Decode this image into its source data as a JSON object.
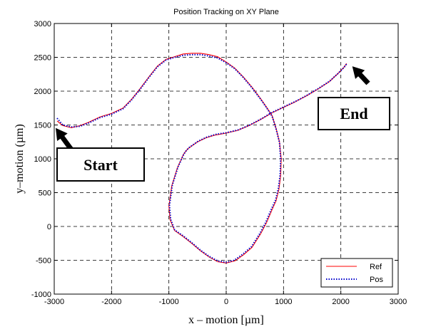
{
  "chart_data": {
    "type": "line",
    "title": "Position Tracking on XY Plane",
    "xlabel": "x – motion [µm]",
    "ylabel": "y–motion  (µm)",
    "xlim": [
      -3000,
      3000
    ],
    "ylim": [
      -1000,
      3000
    ],
    "xticks": [
      -3000,
      -2000,
      -1000,
      0,
      1000,
      2000,
      3000
    ],
    "yticks": [
      -1000,
      -500,
      0,
      500,
      1000,
      1500,
      2000,
      2500,
      3000
    ],
    "xtick_labels": [
      "-3000",
      "-2000",
      "-1000",
      "0",
      "1000",
      "2000",
      "3000"
    ],
    "ytick_labels": [
      "-1000",
      "-500",
      "0",
      "500",
      "1000",
      "1500",
      "2000",
      "2500",
      "3000"
    ],
    "grid": true,
    "legend_position": "bottom-right",
    "series": [
      {
        "name": "Ref",
        "color": "#ff0000",
        "style": "solid",
        "x": [
          -2950,
          -2850,
          -2700,
          -2550,
          -2400,
          -2200,
          -2000,
          -1800,
          -1650,
          -1500,
          -1350,
          -1200,
          -1050,
          -900,
          -750,
          -600,
          -450,
          -300,
          -150,
          0,
          150,
          300,
          450,
          600,
          700,
          800,
          870,
          930,
          960,
          950,
          920,
          870,
          800,
          750,
          700,
          600,
          450,
          300,
          150,
          0,
          -150,
          -300,
          -450,
          -600,
          -750,
          -900,
          -980,
          -1000,
          -950,
          -850,
          -750,
          -700,
          -650,
          -500,
          -350,
          -200,
          0,
          200,
          400,
          600,
          800,
          1000,
          1200,
          1400,
          1600,
          1800,
          1950,
          2050,
          2100
        ],
        "y": [
          1560,
          1490,
          1460,
          1490,
          1540,
          1620,
          1670,
          1750,
          1880,
          2040,
          2210,
          2370,
          2470,
          2510,
          2550,
          2560,
          2560,
          2540,
          2510,
          2430,
          2340,
          2210,
          2060,
          1890,
          1770,
          1640,
          1450,
          1250,
          1000,
          750,
          550,
          380,
          250,
          150,
          50,
          -110,
          -310,
          -420,
          -510,
          -540,
          -520,
          -450,
          -360,
          -250,
          -150,
          -60,
          100,
          300,
          600,
          870,
          1060,
          1120,
          1160,
          1250,
          1310,
          1350,
          1380,
          1420,
          1490,
          1580,
          1680,
          1760,
          1840,
          1930,
          2030,
          2140,
          2260,
          2350,
          2410
        ]
      },
      {
        "name": "Pos",
        "color": "#0000cc",
        "style": "dotted",
        "x": [
          -2950,
          -2850,
          -2700,
          -2550,
          -2400,
          -2200,
          -2000,
          -1800,
          -1650,
          -1500,
          -1350,
          -1200,
          -1050,
          -900,
          -750,
          -600,
          -450,
          -300,
          -150,
          0,
          150,
          300,
          450,
          600,
          700,
          800,
          870,
          930,
          950,
          940,
          910,
          860,
          790,
          740,
          690,
          590,
          440,
          290,
          140,
          0,
          -150,
          -300,
          -450,
          -600,
          -750,
          -900,
          -970,
          -990,
          -940,
          -840,
          -740,
          -690,
          -640,
          -490,
          -340,
          -190,
          0,
          200,
          400,
          600,
          800,
          1000,
          1200,
          1400,
          1600,
          1800,
          1950,
          2050,
          2100
        ],
        "y": [
          1600,
          1500,
          1470,
          1480,
          1530,
          1610,
          1660,
          1740,
          1870,
          2030,
          2200,
          2360,
          2460,
          2500,
          2530,
          2540,
          2540,
          2520,
          2490,
          2420,
          2330,
          2200,
          2050,
          1880,
          1760,
          1630,
          1440,
          1240,
          1000,
          760,
          560,
          390,
          260,
          160,
          60,
          -100,
          -300,
          -410,
          -500,
          -530,
          -510,
          -440,
          -350,
          -240,
          -140,
          -50,
          110,
          310,
          610,
          880,
          1070,
          1130,
          1170,
          1260,
          1320,
          1360,
          1385,
          1425,
          1495,
          1585,
          1685,
          1765,
          1845,
          1935,
          2035,
          2145,
          2260,
          2345,
          2400
        ]
      }
    ],
    "annotations": [
      {
        "text": "Start",
        "target_x": -3000,
        "target_y": 1560
      },
      {
        "text": "End",
        "target_x": 2100,
        "target_y": 2410
      }
    ]
  }
}
